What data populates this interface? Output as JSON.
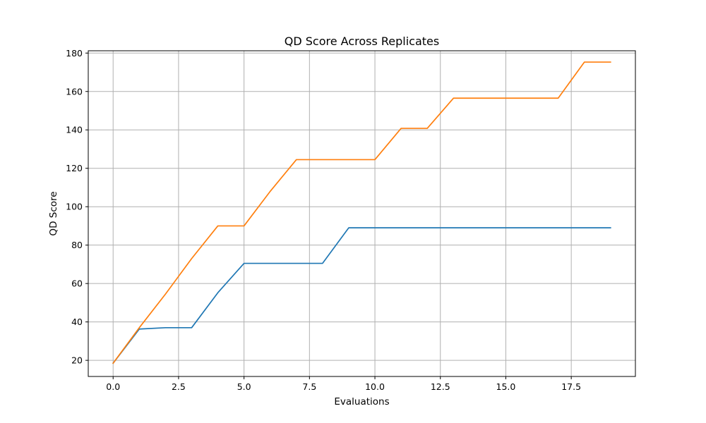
{
  "chart_data": {
    "type": "line",
    "title": "QD Score Across Replicates",
    "xlabel": "Evaluations",
    "ylabel": "QD Score",
    "x": [
      0,
      1,
      2,
      3,
      4,
      5,
      6,
      7,
      8,
      9,
      10,
      11,
      12,
      13,
      14,
      15,
      16,
      17,
      18,
      19
    ],
    "xlim": [
      -0.95,
      19.95
    ],
    "ylim": [
      11.6,
      181.2
    ],
    "xticks": [
      0,
      2.5,
      5,
      7.5,
      10,
      12.5,
      15,
      17.5
    ],
    "xtick_labels": [
      "0.0",
      "2.5",
      "5.0",
      "7.5",
      "10.0",
      "12.5",
      "15.0",
      "17.5"
    ],
    "yticks": [
      20,
      40,
      60,
      80,
      100,
      120,
      140,
      160,
      180
    ],
    "ytick_labels": [
      "20",
      "40",
      "60",
      "80",
      "100",
      "120",
      "140",
      "160",
      "180"
    ],
    "grid": true,
    "series": [
      {
        "color": "#1f77b4",
        "values": [
          18.5,
          36.3,
          37,
          37,
          55.2,
          70.5,
          70.5,
          70.5,
          70.5,
          89,
          89,
          89,
          89,
          89,
          89,
          89,
          89,
          89,
          89,
          89
        ]
      },
      {
        "color": "#ff7f0e",
        "values": [
          18.5,
          37,
          54.5,
          73,
          90,
          90,
          108,
          124.5,
          124.5,
          124.5,
          124.5,
          140.8,
          140.8,
          156.5,
          156.5,
          156.5,
          156.5,
          156.5,
          175.3,
          175.3
        ]
      }
    ]
  }
}
